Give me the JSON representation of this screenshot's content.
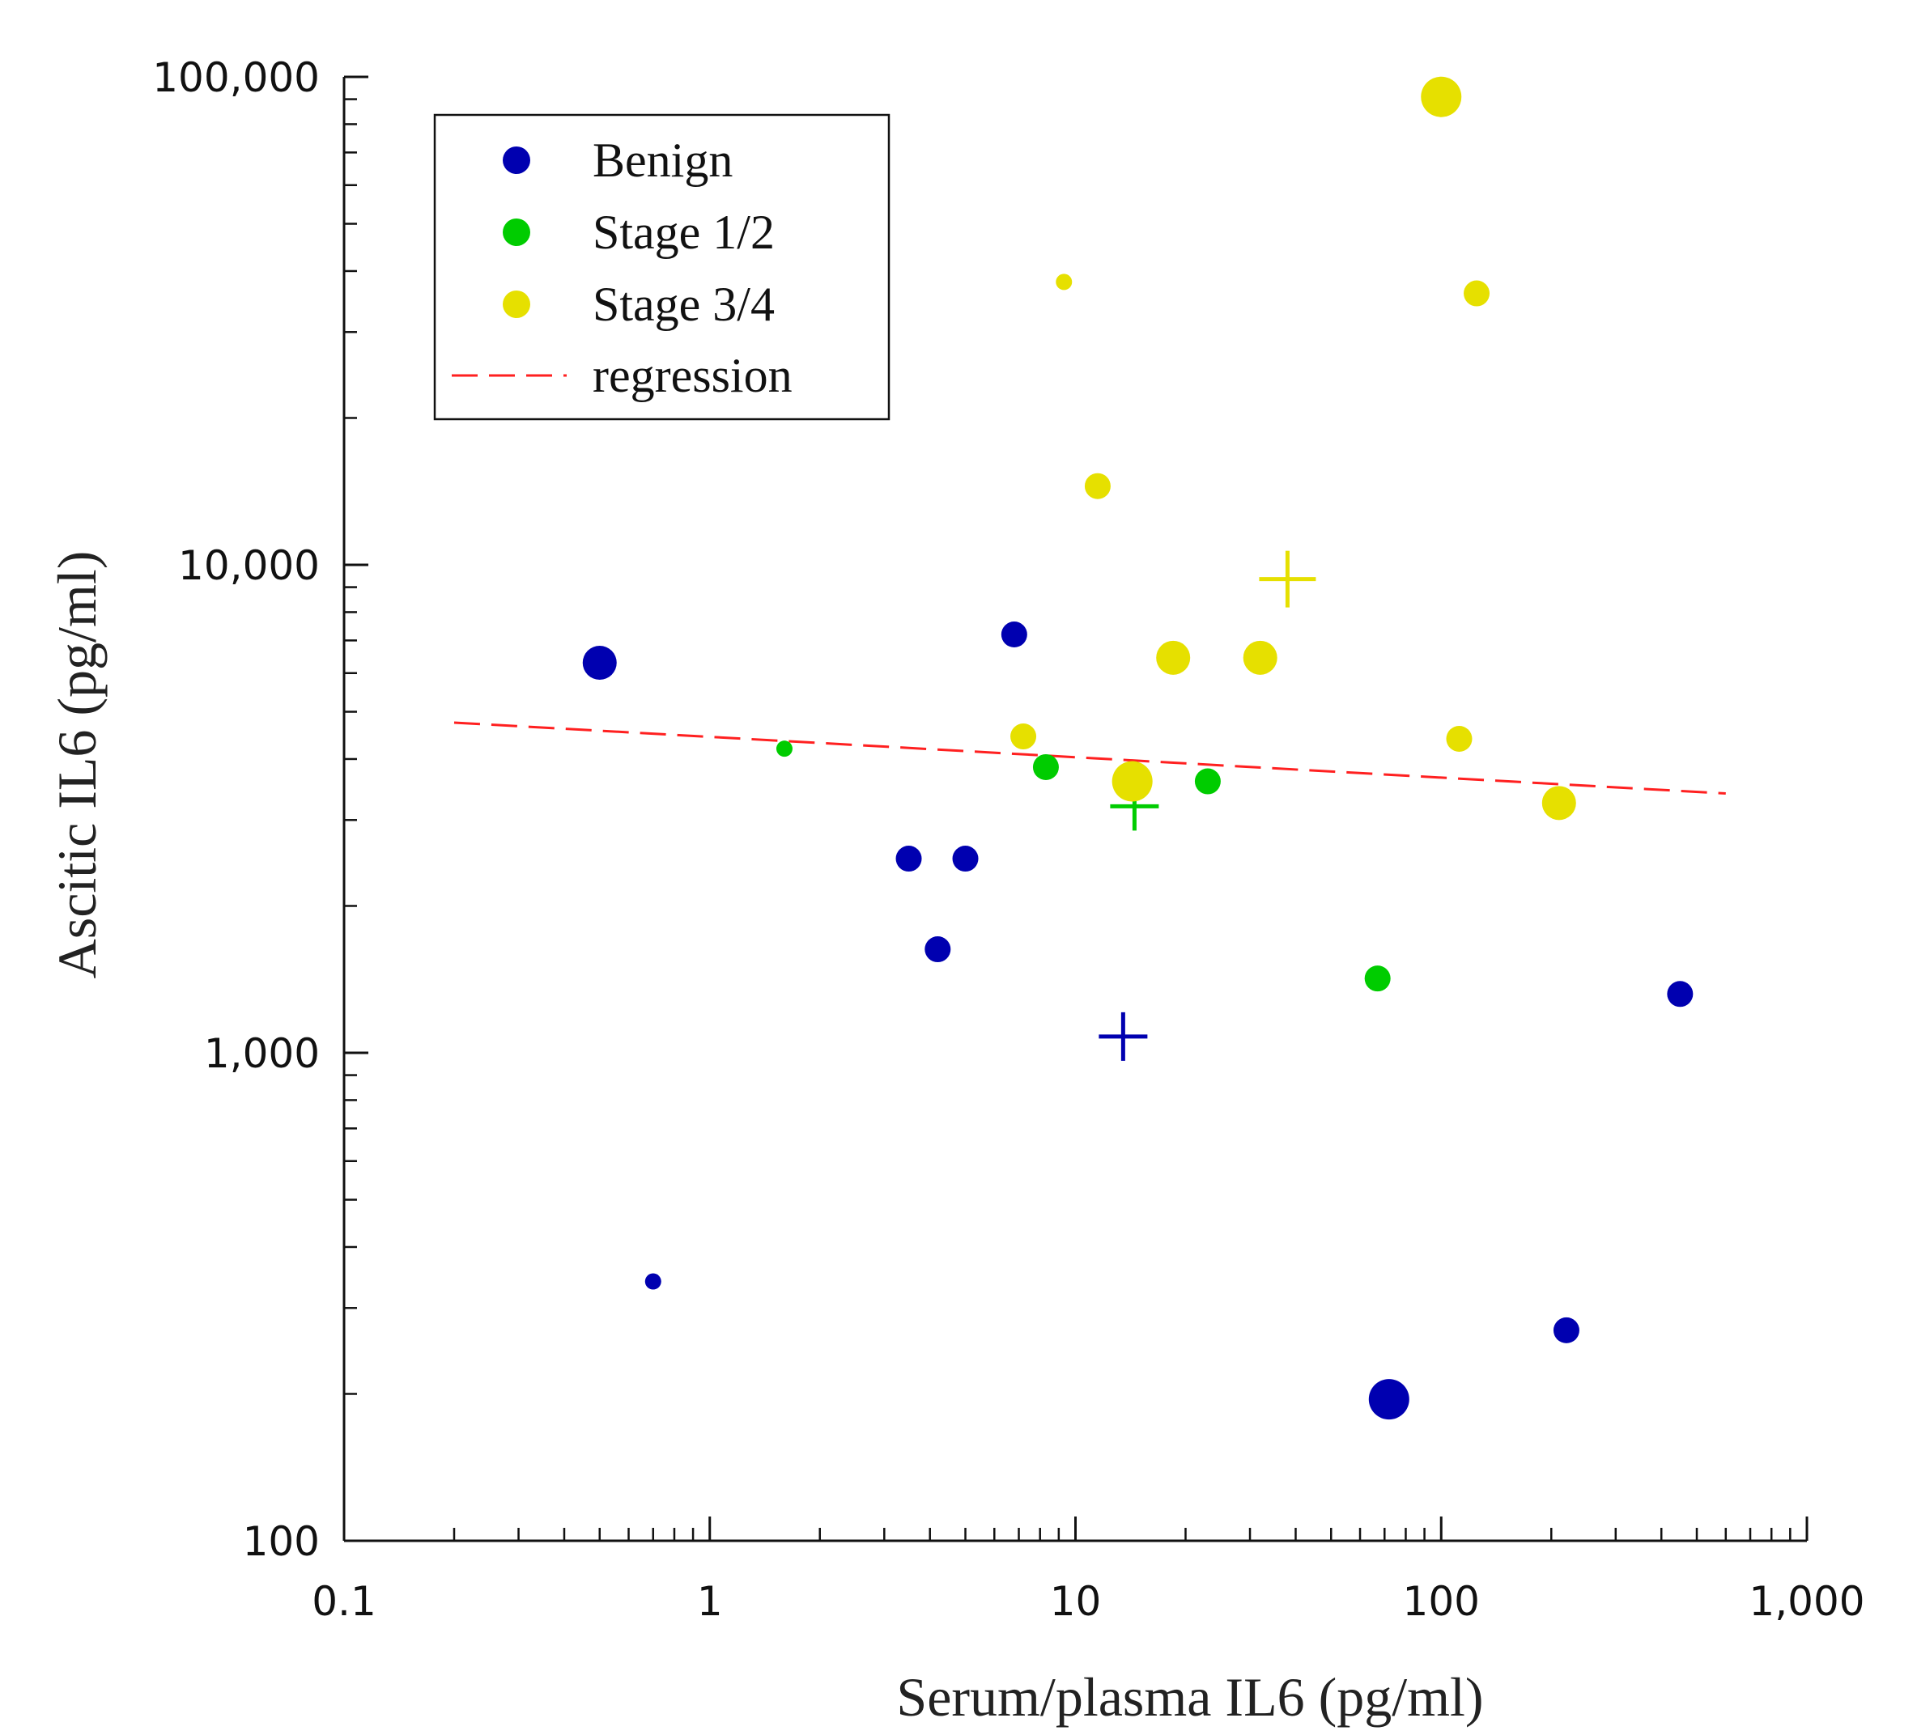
{
  "chart_data": {
    "type": "scatter",
    "xlabel": "Serum/plasma IL6 (pg/ml)",
    "ylabel": "Ascitic IL6 (pg/ml)",
    "x_scale": "log",
    "y_scale": "log",
    "xlim": [
      0.1,
      1000
    ],
    "ylim": [
      100,
      100000
    ],
    "x_ticks": [
      {
        "value": 0.1,
        "label": "0.1"
      },
      {
        "value": 1,
        "label": "1"
      },
      {
        "value": 10,
        "label": "10"
      },
      {
        "value": 100,
        "label": "100"
      },
      {
        "value": 1000,
        "label": "1,000"
      }
    ],
    "y_ticks": [
      {
        "value": 100,
        "label": "100"
      },
      {
        "value": 1000,
        "label": "1,000"
      },
      {
        "value": 10000,
        "label": "10,000"
      },
      {
        "value": 100000,
        "label": "100,000"
      }
    ],
    "legend": {
      "position": "top-left",
      "entries": [
        {
          "label": "Benign",
          "marker": "circle",
          "color": "#0000b0"
        },
        {
          "label": "Stage 1/2",
          "marker": "circle",
          "color": "#00cc00"
        },
        {
          "label": "Stage 3/4",
          "marker": "circle",
          "color": "#e6e000"
        },
        {
          "label": "regression",
          "marker": "dashed-line",
          "color": "#ff2020"
        }
      ]
    },
    "series": [
      {
        "name": "Benign",
        "color": "#0000b0",
        "points": [
          {
            "x": 0.5,
            "y": 6300,
            "size": "large",
            "marker": "circle"
          },
          {
            "x": 0.7,
            "y": 340,
            "size": "small",
            "marker": "circle"
          },
          {
            "x": 3.5,
            "y": 2500,
            "size": "medium",
            "marker": "circle"
          },
          {
            "x": 5.0,
            "y": 2500,
            "size": "medium",
            "marker": "circle"
          },
          {
            "x": 4.2,
            "y": 1630,
            "size": "medium",
            "marker": "circle"
          },
          {
            "x": 6.8,
            "y": 7200,
            "size": "medium",
            "marker": "circle"
          },
          {
            "x": 13.5,
            "y": 1080,
            "size": "medium",
            "marker": "plus"
          },
          {
            "x": 72,
            "y": 195,
            "size": "xlarge",
            "marker": "circle"
          },
          {
            "x": 220,
            "y": 270,
            "size": "medium",
            "marker": "circle"
          },
          {
            "x": 450,
            "y": 1320,
            "size": "medium",
            "marker": "circle"
          }
        ]
      },
      {
        "name": "Stage 1/2",
        "color": "#00cc00",
        "points": [
          {
            "x": 1.6,
            "y": 4200,
            "size": "small",
            "marker": "circle"
          },
          {
            "x": 8.3,
            "y": 3850,
            "size": "medium",
            "marker": "circle"
          },
          {
            "x": 14.5,
            "y": 3200,
            "size": "medium",
            "marker": "plus"
          },
          {
            "x": 23,
            "y": 3600,
            "size": "medium",
            "marker": "circle"
          },
          {
            "x": 67,
            "y": 1420,
            "size": "medium",
            "marker": "circle"
          }
        ]
      },
      {
        "name": "Stage 3/4",
        "color": "#e6e000",
        "points": [
          {
            "x": 7.2,
            "y": 4450,
            "size": "medium",
            "marker": "circle"
          },
          {
            "x": 9.3,
            "y": 38000,
            "size": "small",
            "marker": "circle"
          },
          {
            "x": 11.5,
            "y": 14500,
            "size": "medium",
            "marker": "circle"
          },
          {
            "x": 14.3,
            "y": 3600,
            "size": "xlarge",
            "marker": "circle"
          },
          {
            "x": 18.5,
            "y": 6450,
            "size": "large",
            "marker": "circle"
          },
          {
            "x": 32,
            "y": 6450,
            "size": "large",
            "marker": "circle"
          },
          {
            "x": 38,
            "y": 9350,
            "size": "large",
            "marker": "plus"
          },
          {
            "x": 100,
            "y": 91000,
            "size": "xlarge",
            "marker": "circle"
          },
          {
            "x": 112,
            "y": 4400,
            "size": "medium",
            "marker": "circle"
          },
          {
            "x": 125,
            "y": 36000,
            "size": "medium",
            "marker": "circle"
          },
          {
            "x": 210,
            "y": 3250,
            "size": "large",
            "marker": "circle"
          }
        ]
      }
    ],
    "regression": {
      "name": "regression",
      "color": "#ff2020",
      "style": "dashed",
      "x": [
        0.2,
        600
      ],
      "y": [
        4750,
        3400
      ]
    }
  }
}
